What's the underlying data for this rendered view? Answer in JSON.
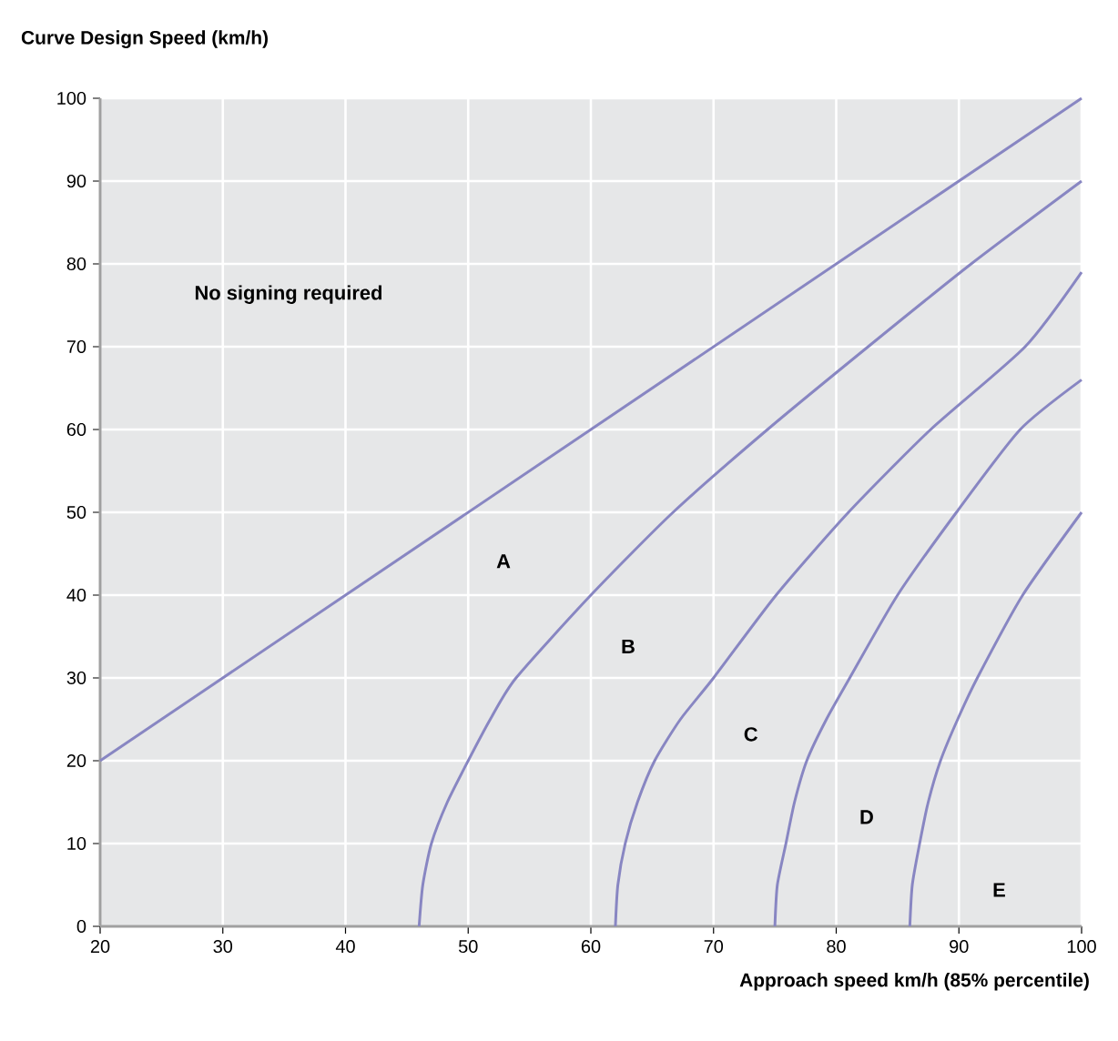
{
  "chart_data": {
    "type": "line",
    "xlabel": "Approach speed km/h (85% percentile)",
    "ylabel": "Curve Design Speed (km/h)",
    "xlim": [
      20,
      100
    ],
    "ylim": [
      0,
      100
    ],
    "xticks": [
      20,
      30,
      40,
      50,
      60,
      70,
      80,
      90,
      100
    ],
    "yticks": [
      0,
      10,
      20,
      30,
      40,
      50,
      60,
      70,
      80,
      90,
      100
    ],
    "grid": true,
    "series": [
      {
        "color": "#8886c2",
        "x": [
          20,
          100
        ],
        "values": [
          20,
          100
        ]
      },
      {
        "color": "#8886c2",
        "x": [
          46,
          46.3,
          47,
          48.3,
          50,
          51.8,
          53.9,
          60,
          66.7,
          74.4,
          82.6,
          91,
          100
        ],
        "values": [
          0,
          5,
          10,
          15,
          20,
          25,
          30,
          40,
          50,
          60,
          70,
          80,
          90
        ]
      },
      {
        "color": "#8886c2",
        "x": [
          62,
          62.2,
          62.8,
          63.8,
          65.2,
          67.3,
          70,
          75.1,
          81,
          87.7,
          95.4,
          100
        ],
        "values": [
          0,
          5,
          10,
          15,
          20,
          25,
          30,
          40,
          50,
          60,
          70,
          79
        ]
      },
      {
        "color": "#8886c2",
        "x": [
          75,
          75.2,
          75.9,
          76.6,
          77.6,
          79.2,
          81.1,
          85,
          89.8,
          95,
          100
        ],
        "values": [
          0,
          5,
          10,
          15,
          20,
          25,
          30,
          40,
          50,
          60,
          66
        ]
      },
      {
        "color": "#8886c2",
        "x": [
          86,
          86.2,
          86.8,
          87.5,
          88.5,
          89.9,
          91.5,
          95.2,
          100
        ],
        "values": [
          0,
          5,
          10,
          15,
          20,
          25,
          30,
          40,
          50
        ]
      }
    ],
    "annotations": [
      "No signing required",
      "A",
      "B",
      "C",
      "D",
      "E"
    ]
  }
}
